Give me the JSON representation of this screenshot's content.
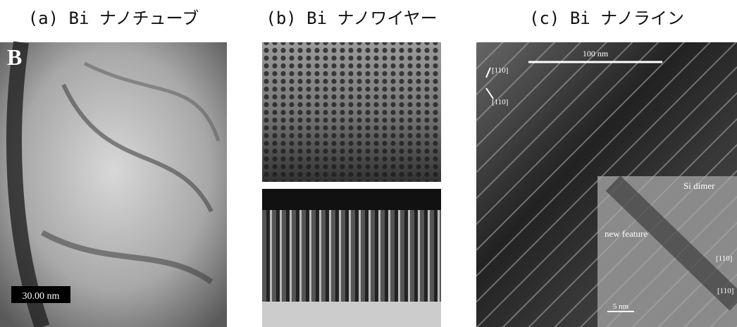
{
  "panels": [
    {
      "caption": "(a) Bi ナノチューブ",
      "labels": [
        "B",
        "30.00 nm"
      ]
    },
    {
      "caption": "(b) Bi ナノワイヤー",
      "labels": []
    },
    {
      "caption": "(c) Bi ナノライン",
      "labels": [
        "100 nm",
        "[110]",
        "[110]",
        "Si dimer",
        "new feature",
        "5 nm",
        "[110]",
        "[110]"
      ]
    }
  ]
}
